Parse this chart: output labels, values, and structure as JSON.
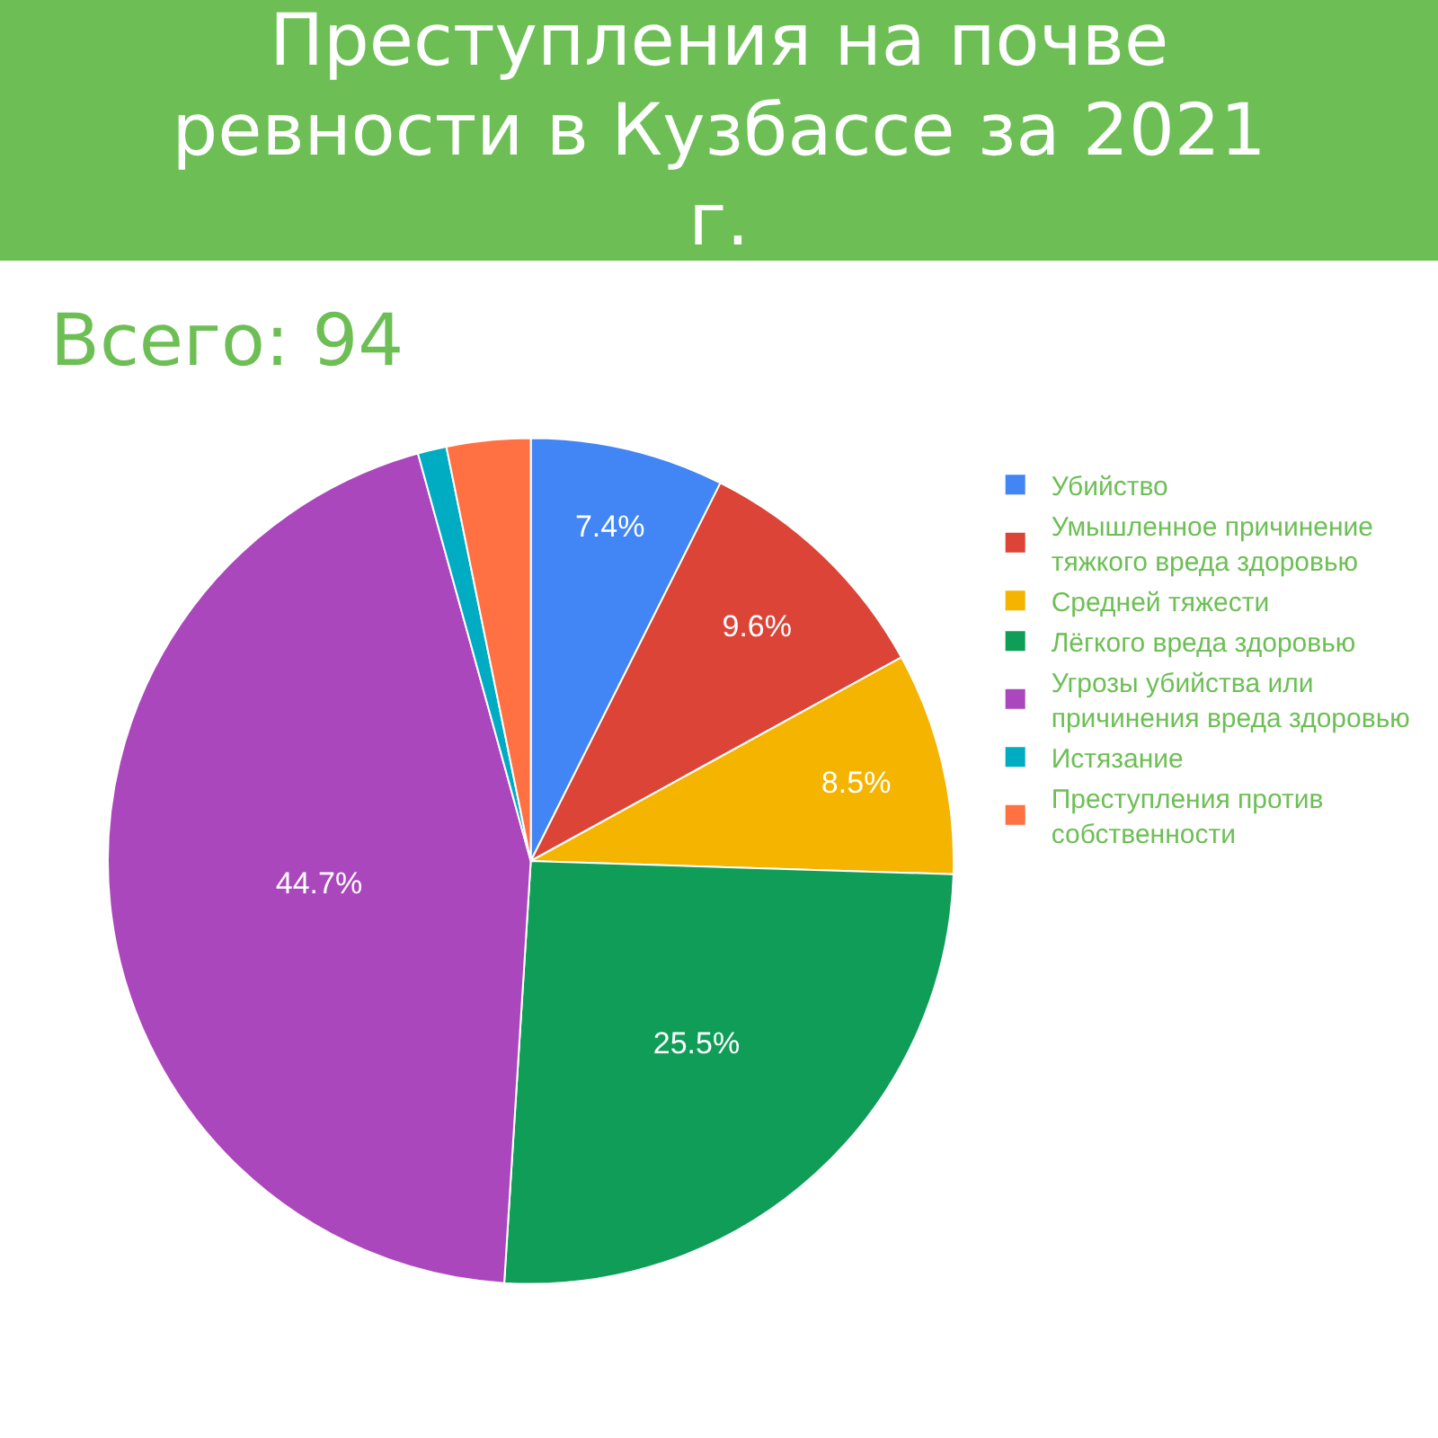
{
  "chart_data": {
    "type": "pie",
    "title": "Преступления на почве ревности в Кузбассе за 2021 г.",
    "subtitle": "Всего: 94",
    "categories": [
      "Убийство",
      "Умышленное причинение тяжкого вреда здоровью",
      "Средней тяжести",
      "Лёгкого вреда здоровью",
      "Угрозы убийства или причинения вреда здоровью",
      "Истязание",
      "Преступления против собственности"
    ],
    "values": [
      7.4,
      9.6,
      8.5,
      25.5,
      44.7,
      1.1,
      3.2
    ],
    "value_labels": [
      "7.4%",
      "9.6%",
      "8.5%",
      "25.5%",
      "44.7%",
      null,
      null
    ],
    "colors": [
      "#4285f4",
      "#db4437",
      "#f4b400",
      "#0f9d58",
      "#ab47bc",
      "#00acc1",
      "#ff7043"
    ],
    "legend": "right"
  }
}
